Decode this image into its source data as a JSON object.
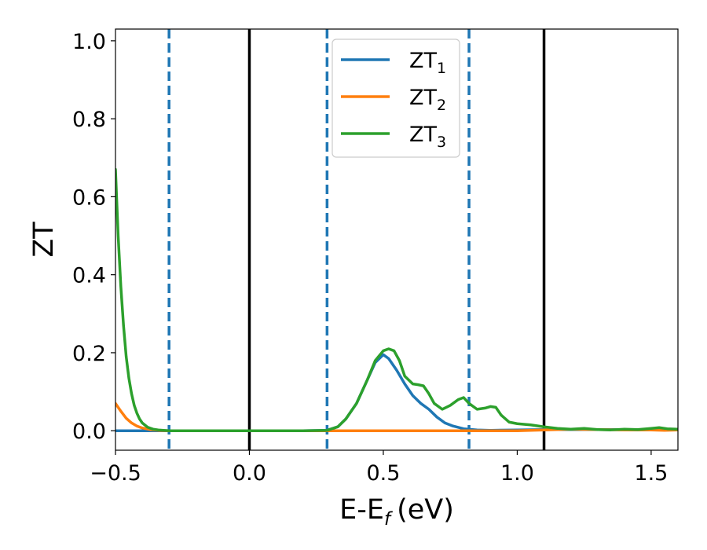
{
  "chart_data": {
    "type": "line",
    "xlabel": "E-E",
    "xlabel_subscript": "f",
    "xlabel_unit": "(eV)",
    "ylabel": "ZT",
    "xlim": [
      -0.5,
      1.6
    ],
    "ylim": [
      -0.05,
      1.03
    ],
    "xticks": [
      -0.5,
      0.0,
      0.5,
      1.0,
      1.5
    ],
    "xtick_labels": [
      "−0.5",
      "0.0",
      "0.5",
      "1.0",
      "1.5"
    ],
    "yticks": [
      0.0,
      0.2,
      0.4,
      0.6,
      0.8,
      1.0
    ],
    "ytick_labels": [
      "0.0",
      "0.2",
      "0.4",
      "0.6",
      "0.8",
      "1.0"
    ],
    "grid": false,
    "legend_position": "top-center",
    "series": [
      {
        "name": "ZT",
        "subscript": "1",
        "color": "#1f77b4",
        "x": [
          -0.5,
          -0.48,
          -0.45,
          -0.42,
          -0.38,
          -0.34,
          -0.3,
          -0.2,
          0.0,
          0.2,
          0.29,
          0.33,
          0.36,
          0.4,
          0.44,
          0.47,
          0.5,
          0.52,
          0.55,
          0.58,
          0.61,
          0.64,
          0.67,
          0.7,
          0.73,
          0.76,
          0.8,
          0.85,
          0.9,
          1.0,
          1.1,
          1.2,
          1.3,
          1.4,
          1.5,
          1.6
        ],
        "y": [
          0.0,
          0.0,
          0.0,
          0.0,
          0.0,
          0.0,
          0.0,
          0.0,
          0.0,
          0.0,
          0.001,
          0.01,
          0.03,
          0.07,
          0.13,
          0.175,
          0.195,
          0.185,
          0.155,
          0.12,
          0.09,
          0.07,
          0.055,
          0.035,
          0.02,
          0.012,
          0.005,
          0.002,
          0.001,
          0.002,
          0.003,
          0.003,
          0.003,
          0.003,
          0.003,
          0.003
        ]
      },
      {
        "name": "ZT",
        "subscript": "2",
        "color": "#ff7f0e",
        "x": [
          -0.5,
          -0.48,
          -0.46,
          -0.44,
          -0.42,
          -0.4,
          -0.37,
          -0.34,
          -0.3,
          -0.2,
          0.0,
          0.5,
          1.0,
          1.1,
          1.2,
          1.3,
          1.4,
          1.5,
          1.55,
          1.6
        ],
        "y": [
          0.07,
          0.05,
          0.032,
          0.02,
          0.012,
          0.007,
          0.003,
          0.001,
          0.0,
          0.0,
          0.0,
          0.0,
          0.0,
          0.002,
          0.004,
          0.003,
          0.002,
          0.002,
          0.001,
          0.002
        ]
      },
      {
        "name": "ZT",
        "subscript": "3",
        "color": "#2ca02c",
        "x": [
          -0.5,
          -0.49,
          -0.48,
          -0.47,
          -0.46,
          -0.45,
          -0.44,
          -0.43,
          -0.42,
          -0.41,
          -0.4,
          -0.38,
          -0.36,
          -0.34,
          -0.32,
          -0.3,
          -0.2,
          0.0,
          0.2,
          0.29,
          0.33,
          0.36,
          0.4,
          0.44,
          0.47,
          0.5,
          0.52,
          0.54,
          0.56,
          0.58,
          0.61,
          0.63,
          0.65,
          0.67,
          0.69,
          0.72,
          0.75,
          0.78,
          0.8,
          0.82,
          0.85,
          0.88,
          0.9,
          0.92,
          0.94,
          0.97,
          1.0,
          1.05,
          1.1,
          1.15,
          1.2,
          1.25,
          1.3,
          1.35,
          1.4,
          1.45,
          1.5,
          1.53,
          1.56,
          1.6
        ],
        "y": [
          0.67,
          0.5,
          0.37,
          0.27,
          0.19,
          0.135,
          0.095,
          0.065,
          0.045,
          0.03,
          0.02,
          0.009,
          0.004,
          0.002,
          0.001,
          0.0,
          0.0,
          0.0,
          0.0,
          0.001,
          0.01,
          0.03,
          0.07,
          0.13,
          0.18,
          0.205,
          0.21,
          0.205,
          0.18,
          0.14,
          0.12,
          0.118,
          0.115,
          0.095,
          0.07,
          0.055,
          0.065,
          0.08,
          0.085,
          0.07,
          0.055,
          0.058,
          0.062,
          0.06,
          0.04,
          0.022,
          0.018,
          0.015,
          0.01,
          0.006,
          0.004,
          0.006,
          0.003,
          0.002,
          0.004,
          0.003,
          0.006,
          0.008,
          0.005,
          0.004
        ]
      }
    ],
    "vlines": [
      {
        "x": -0.3,
        "style": "dashed",
        "color": "#1f77b4"
      },
      {
        "x": 0.0,
        "style": "solid",
        "color": "#000000"
      },
      {
        "x": 0.29,
        "style": "dashed",
        "color": "#1f77b4"
      },
      {
        "x": 0.82,
        "style": "dashed",
        "color": "#1f77b4"
      },
      {
        "x": 1.1,
        "style": "solid",
        "color": "#000000"
      }
    ]
  }
}
